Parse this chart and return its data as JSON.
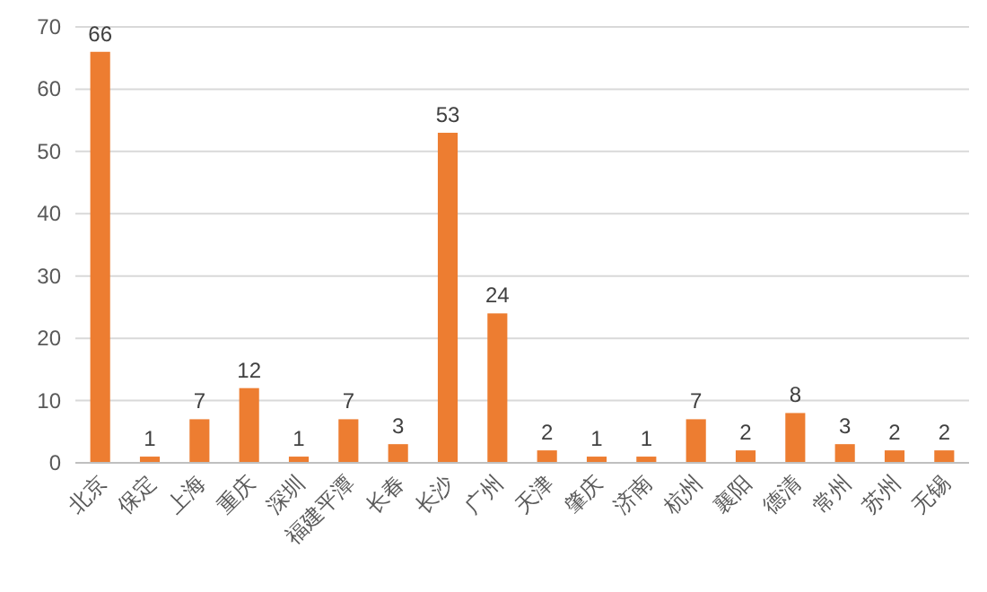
{
  "chart_data": {
    "type": "bar",
    "categories": [
      "北京",
      "保定",
      "上海",
      "重庆",
      "深圳",
      "福建平潭",
      "长春",
      "长沙",
      "广州",
      "天津",
      "肇庆",
      "济南",
      "杭州",
      "襄阳",
      "德清",
      "常州",
      "苏州",
      "无锡"
    ],
    "values": [
      66,
      1,
      7,
      12,
      1,
      7,
      3,
      53,
      24,
      2,
      1,
      1,
      7,
      2,
      8,
      3,
      2,
      2
    ],
    "color": "#ed7d31",
    "ylim": [
      0,
      70
    ],
    "yticks": [
      0,
      10,
      20,
      30,
      40,
      50,
      60,
      70
    ],
    "grid": "y",
    "data_labels": true
  }
}
